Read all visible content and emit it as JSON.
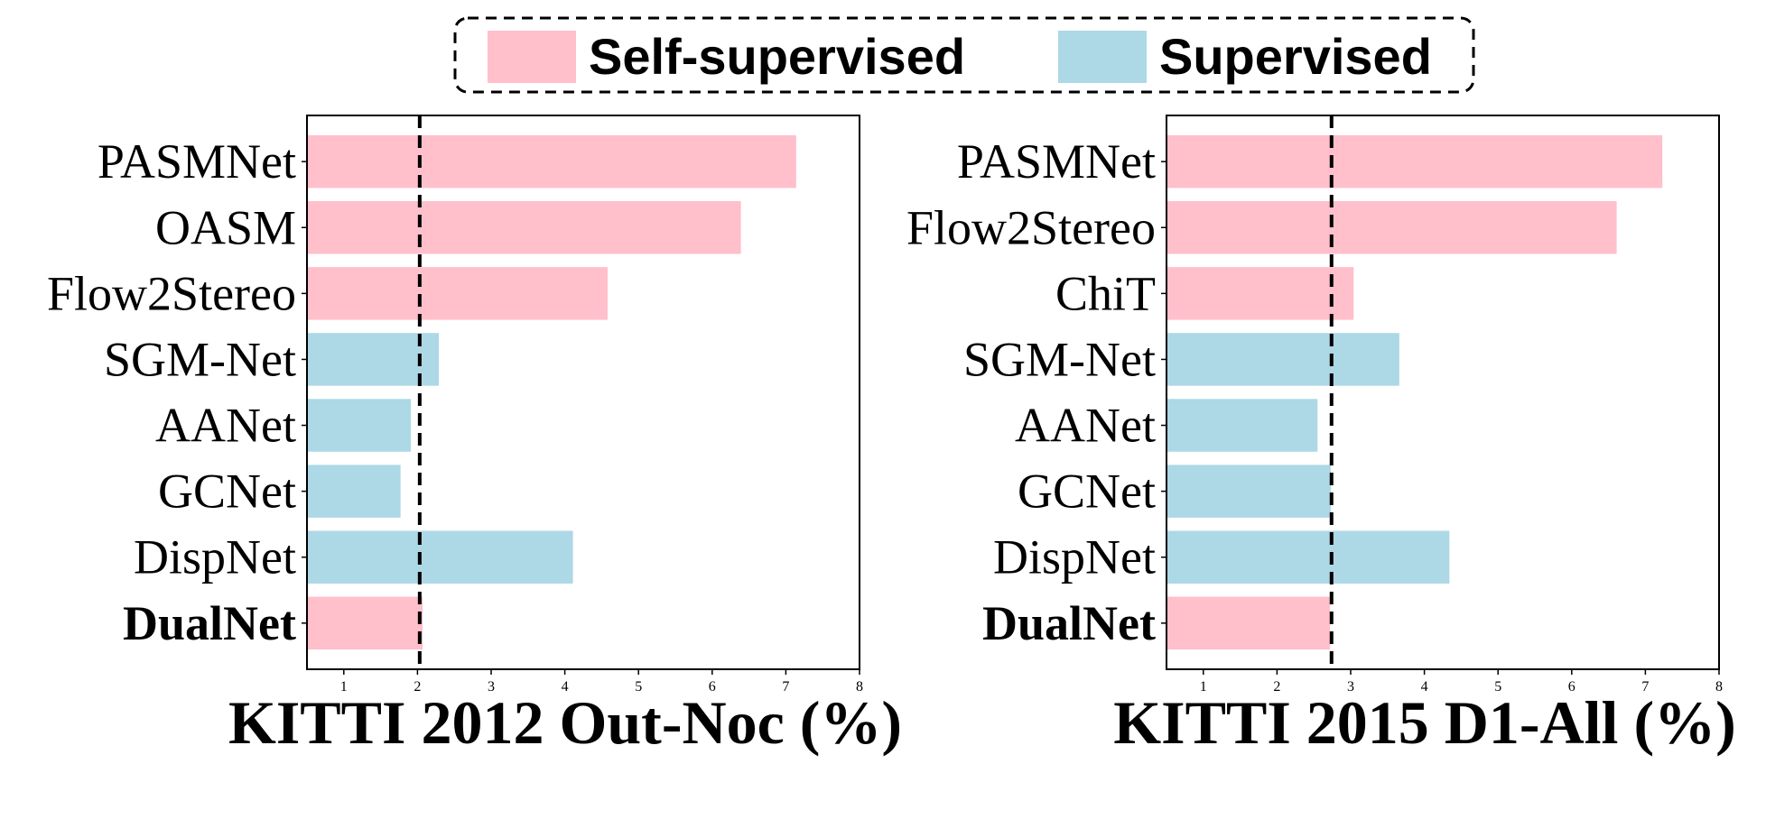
{
  "legend": {
    "items": [
      {
        "label": "Self-supervised",
        "color": "#FFBFCB"
      },
      {
        "label": "Supervised",
        "color": "#ADD8E6"
      }
    ]
  },
  "chart_data": [
    {
      "type": "bar",
      "orientation": "horizontal",
      "xlabel": "KITTI 2012 Out-Noc (%)",
      "categories": [
        "PASMNet",
        "OASM",
        "Flow2Stereo",
        "SGM-Net",
        "AANet",
        "GCNet",
        "DispNet",
        "DualNet"
      ],
      "values": [
        7.14,
        6.39,
        4.58,
        2.29,
        1.91,
        1.77,
        4.11,
        2.07
      ],
      "groups": [
        "Self-supervised",
        "Self-supervised",
        "Self-supervised",
        "Supervised",
        "Supervised",
        "Supervised",
        "Supervised",
        "Self-supervised"
      ],
      "bold_categories": [
        "DualNet"
      ],
      "reference_line": 2.03,
      "xlim": [
        0.5,
        8
      ],
      "xticks": [
        1,
        2,
        3,
        4,
        5,
        6,
        7,
        8
      ]
    },
    {
      "type": "bar",
      "orientation": "horizontal",
      "xlabel": "KITTI 2015 D1-All (%)",
      "categories": [
        "PASMNet",
        "Flow2Stereo",
        "ChiT",
        "SGM-Net",
        "AANet",
        "GCNet",
        "DispNet",
        "DualNet"
      ],
      "values": [
        7.23,
        6.61,
        3.04,
        3.66,
        2.55,
        2.73,
        4.34,
        2.72
      ],
      "groups": [
        "Self-supervised",
        "Self-supervised",
        "Self-supervised",
        "Supervised",
        "Supervised",
        "Supervised",
        "Supervised",
        "Self-supervised"
      ],
      "bold_categories": [
        "DualNet"
      ],
      "reference_line": 2.74,
      "xlim": [
        0.5,
        8
      ],
      "xticks": [
        1,
        2,
        3,
        4,
        5,
        6,
        7,
        8
      ]
    }
  ]
}
